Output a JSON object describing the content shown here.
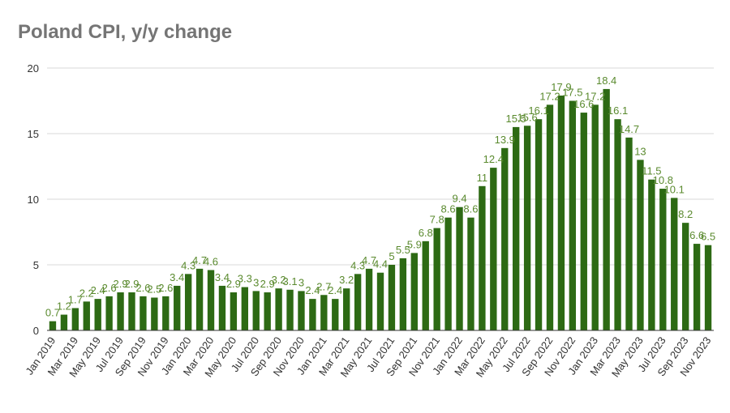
{
  "chart_data": {
    "type": "bar",
    "title": "Poland CPI, y/y change",
    "xlabel": "",
    "ylabel": "",
    "ylim": [
      0,
      20
    ],
    "yticks": [
      0,
      5,
      10,
      15,
      20
    ],
    "grid": true,
    "legend": "none",
    "bar_color": "#2d6a14",
    "label_color": "#5a8a2e",
    "categories": [
      "Jan 2019",
      "Feb 2019",
      "Mar 2019",
      "Apr 2019",
      "May 2019",
      "Jun 2019",
      "Jul 2019",
      "Aug 2019",
      "Sep 2019",
      "Oct 2019",
      "Nov 2019",
      "Dec 2019",
      "Jan 2020",
      "Feb 2020",
      "Mar 2020",
      "Apr 2020",
      "May 2020",
      "Jun 2020",
      "Jul 2020",
      "Aug 2020",
      "Sep 2020",
      "Oct 2020",
      "Nov 2020",
      "Dec 2020",
      "Jan 2021",
      "Feb 2021",
      "Mar 2021",
      "Apr 2021",
      "May 2021",
      "Jun 2021",
      "Jul 2021",
      "Aug 2021",
      "Sep 2021",
      "Oct 2021",
      "Nov 2021",
      "Dec 2021",
      "Jan 2022",
      "Feb 2022",
      "Mar 2022",
      "Apr 2022",
      "May 2022",
      "Jun 2022",
      "Jul 2022",
      "Aug 2022",
      "Sep 2022",
      "Oct 2022",
      "Nov 2022",
      "Dec 2022",
      "Jan 2023",
      "Feb 2023",
      "Mar 2023",
      "Apr 2023",
      "May 2023",
      "Jun 2023",
      "Jul 2023",
      "Aug 2023",
      "Sep 2023",
      "Oct 2023",
      "Nov 2023"
    ],
    "x_tick_labels": [
      "Jan 2019",
      "",
      "Mar 2019",
      "",
      "May 2019",
      "",
      "Jul 2019",
      "",
      "Sep 2019",
      "",
      "Nov 2019",
      "",
      "Jan 2020",
      "",
      "Mar 2020",
      "",
      "May 2020",
      "",
      "Jul 2020",
      "",
      "Sep 2020",
      "",
      "Nov 2020",
      "",
      "Jan 2021",
      "",
      "Mar 2021",
      "",
      "May 2021",
      "",
      "Jul 2021",
      "",
      "Sep 2021",
      "",
      "Nov 2021",
      "",
      "Jan 2022",
      "",
      "Mar 2022",
      "",
      "May 2022",
      "",
      "Jul 2022",
      "",
      "Sep 2022",
      "",
      "Nov 2022",
      "",
      "Jan 2023",
      "",
      "Mar 2023",
      "",
      "May 2023",
      "",
      "Jul 2023",
      "",
      "Sep 2023",
      "",
      "Nov 2023"
    ],
    "values": [
      0.7,
      1.2,
      1.7,
      2.2,
      2.4,
      2.6,
      2.9,
      2.9,
      2.6,
      2.5,
      2.6,
      3.4,
      4.3,
      4.7,
      4.6,
      3.4,
      2.9,
      3.3,
      3.0,
      2.9,
      3.2,
      3.1,
      3.0,
      2.4,
      2.7,
      2.4,
      3.2,
      4.3,
      4.7,
      4.4,
      5.0,
      5.5,
      5.9,
      6.8,
      7.8,
      8.6,
      9.4,
      8.6,
      11.0,
      12.4,
      13.9,
      15.5,
      15.6,
      16.1,
      17.2,
      17.9,
      17.5,
      16.6,
      17.2,
      18.4,
      16.1,
      14.7,
      13.0,
      11.5,
      10.8,
      10.1,
      8.2,
      6.6,
      6.5
    ],
    "data_labels": [
      "0.7",
      "1.2",
      "1.7",
      "2.2",
      "2.4",
      "2.6",
      "2.9",
      "2.9",
      "2.6",
      "2.5",
      "2.6",
      "3.4",
      "4.3",
      "4.7",
      "4.6",
      "3.4",
      "2.9",
      "3.3",
      "3",
      "2.9",
      "3.2",
      "3.1",
      "3",
      "2.4",
      "2.7",
      "2.4",
      "3.2",
      "4.3",
      "4.7",
      "4.4",
      "5",
      "5.5",
      "5.9",
      "6.8",
      "7.8",
      "8.6",
      "9.4",
      "8.6",
      "11",
      "12.4",
      "13.9",
      "15.5",
      "15.6",
      "16.1",
      "17.2",
      "17.9",
      "17.5",
      "16.6",
      "17.2",
      "18.4",
      "16.1",
      "14.7",
      "13",
      "11.5",
      "10.8",
      "10.1",
      "8.2",
      "6.6",
      "6.5"
    ]
  }
}
